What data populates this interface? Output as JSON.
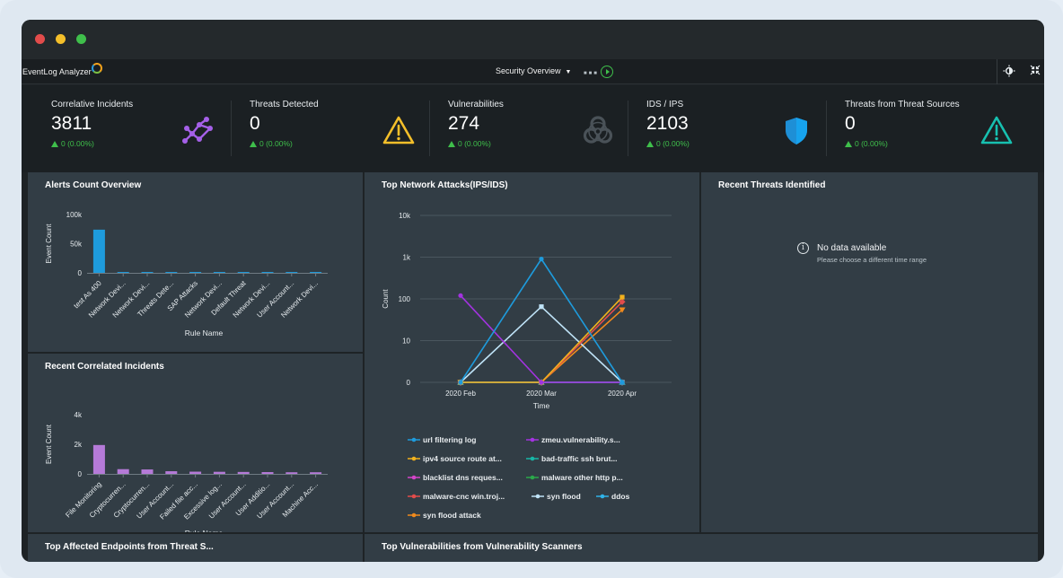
{
  "app": {
    "name": "EventLog Analyzer",
    "view_selector": "Security Overview"
  },
  "colors": {
    "close": "#e24c4b",
    "minimize": "#f4bf2a",
    "maximize": "#3fbf4b",
    "positive": "#3fbf4b",
    "panel": "#323d45"
  },
  "icons": {
    "theme": "theme-toggle-icon",
    "collapse": "collapse-arrows-icon",
    "correlation": "network-nodes-icon",
    "threats": "warning-triangle-icon",
    "vulnerabilities": "biohazard-icon",
    "ids": "shield-icon",
    "threat_sources": "alert-triangle-icon"
  },
  "stats": [
    {
      "label": "Correlative Incidents",
      "value": "3811",
      "delta": "0 (0.00%)"
    },
    {
      "label": "Threats Detected",
      "value": "0",
      "delta": "0 (0.00%)"
    },
    {
      "label": "Vulnerabilities",
      "value": "274",
      "delta": "0 (0.00%)"
    },
    {
      "label": "IDS / IPS",
      "value": "2103",
      "delta": "0 (0.00%)"
    },
    {
      "label": "Threats from Threat Sources",
      "value": "0",
      "delta": "0 (0.00%)"
    }
  ],
  "panels": {
    "alerts": {
      "title": "Alerts Count Overview"
    },
    "network": {
      "title": "Top Network Attacks(IPS/IDS)"
    },
    "recent_threats": {
      "title": "Recent Threats Identified",
      "no_data": "No data available",
      "no_data_hint": "Please choose a different time range"
    },
    "correlated": {
      "title": "Recent Correlated Incidents"
    },
    "endpoints": {
      "title": "Top Affected Endpoints from Threat S..."
    },
    "vuln_scanners": {
      "title": "Top Vulnerabilities from Vulnerability Scanners"
    }
  },
  "chart_data": [
    {
      "type": "bar",
      "title": "Alerts Count Overview",
      "xlabel": "Rule Name",
      "ylabel": "Event Count",
      "yticks": [
        "0",
        "50k",
        "100k"
      ],
      "ylim": [
        0,
        100000
      ],
      "color": "#1e9bdc",
      "categories": [
        "test As 400",
        "Network Devi...",
        "Network Devi...",
        "Threats Dete...",
        "SAP Attacks",
        "Network Devi...",
        "Default Threat",
        "Network Devi...",
        "User Account...",
        "Network Devi..."
      ],
      "values": [
        74000,
        1500,
        1500,
        1500,
        1500,
        1500,
        1500,
        1500,
        1500,
        1500
      ]
    },
    {
      "type": "bar",
      "title": "Recent Correlated Incidents",
      "xlabel": "Rule Name",
      "ylabel": "Event Count",
      "yticks": [
        "0",
        "2k",
        "4k"
      ],
      "ylim": [
        0,
        4000
      ],
      "color": "#b57ad8",
      "categories": [
        "File Monitoring",
        "Cryptocurren...",
        "Cryptocurren...",
        "User Account...",
        "Failed file acc...",
        "Excessive log...",
        "User Account...",
        "User Additio...",
        "User Account...",
        "Machine Acc..."
      ],
      "values": [
        1950,
        320,
        300,
        180,
        150,
        140,
        130,
        120,
        110,
        110
      ]
    },
    {
      "type": "line",
      "title": "Top Network Attacks(IPS/IDS)",
      "xlabel": "Time",
      "ylabel": "Count",
      "scale": "log",
      "yticks": [
        "0",
        "10",
        "100",
        "1k",
        "10k"
      ],
      "x": [
        "2020 Feb",
        "2020 Mar",
        "2020 Apr"
      ],
      "series": [
        {
          "name": "url filtering log",
          "color": "#1e9bdc",
          "marker": "circle",
          "values": [
            0,
            900,
            0
          ]
        },
        {
          "name": "zmeu.vulnerability.s...",
          "color": "#a333e0",
          "marker": "circle",
          "values": [
            120,
            0,
            0
          ]
        },
        {
          "name": "ipv4 source route at...",
          "color": "#f2b21d",
          "marker": "square",
          "values": [
            0,
            0,
            110
          ]
        },
        {
          "name": "bad-traffic ssh brut...",
          "color": "#17b6a6",
          "marker": "triangle",
          "values": [
            0,
            0,
            0
          ]
        },
        {
          "name": "blacklist dns reques...",
          "color": "#d444c9",
          "marker": "triangle",
          "values": [
            0,
            0,
            0
          ]
        },
        {
          "name": "malware other http p...",
          "color": "#2aa84a",
          "marker": "circle",
          "values": [
            0,
            0,
            0
          ]
        },
        {
          "name": "malware-cnc win.troj...",
          "color": "#e24c4b",
          "marker": "diamond",
          "values": [
            0,
            0,
            85
          ]
        },
        {
          "name": "syn flood",
          "color": "#bfe3f7",
          "marker": "square",
          "values": [
            0,
            65,
            0
          ]
        },
        {
          "name": "ddos",
          "color": "#2fb3e8",
          "marker": "triangle",
          "values": [
            0,
            0,
            0
          ]
        },
        {
          "name": "syn flood attack",
          "color": "#f08a1d",
          "marker": "triangle-down",
          "values": [
            0,
            0,
            55
          ]
        }
      ]
    }
  ]
}
